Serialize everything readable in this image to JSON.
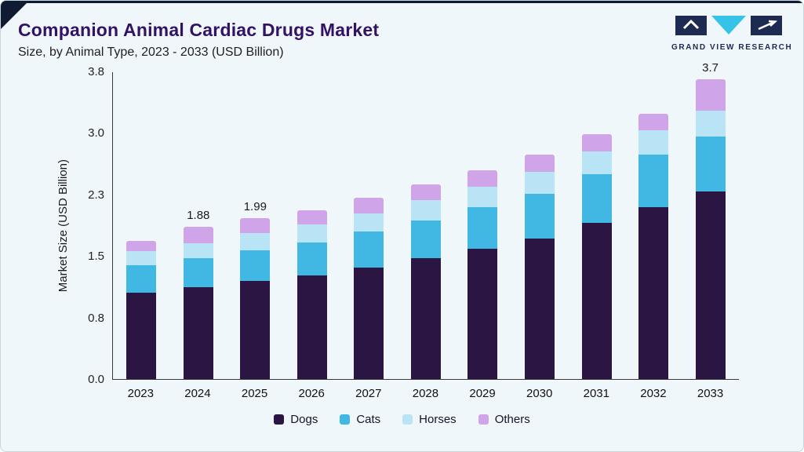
{
  "header": {
    "title": "Companion Animal Cardiac Drugs Market",
    "subtitle": "Size, by Animal Type, 2023 - 2033 (USD Billion)"
  },
  "logo": {
    "text": "GRAND VIEW RESEARCH",
    "navy": "#1d2a52",
    "teal": "#35c4e8"
  },
  "chart_data": {
    "type": "bar",
    "stacked": true,
    "title": "Companion Animal Cardiac Drugs Market Size, by Animal Type, 2023 - 2033 (USD Billion)",
    "xlabel": "",
    "ylabel": "Market Size (USD Billion)",
    "ylim": [
      0,
      3.8
    ],
    "grid": false,
    "legend_position": "bottom",
    "categories": [
      "2023",
      "2024",
      "2025",
      "2026",
      "2027",
      "2028",
      "2029",
      "2030",
      "2031",
      "2032",
      "2033"
    ],
    "series": [
      {
        "name": "Dogs",
        "color": "#2b1542",
        "values": [
          1.07,
          1.13,
          1.21,
          1.28,
          1.38,
          1.49,
          1.61,
          1.74,
          1.93,
          2.12,
          2.32
        ]
      },
      {
        "name": "Cats",
        "color": "#41b8e4",
        "values": [
          0.34,
          0.36,
          0.38,
          0.41,
          0.44,
          0.47,
          0.51,
          0.55,
          0.6,
          0.65,
          0.68
        ]
      },
      {
        "name": "Horses",
        "color": "#b8e4f5",
        "values": [
          0.17,
          0.19,
          0.21,
          0.22,
          0.23,
          0.25,
          0.26,
          0.27,
          0.28,
          0.3,
          0.32
        ]
      },
      {
        "name": "Others",
        "color": "#cfa4e8",
        "values": [
          0.13,
          0.2,
          0.19,
          0.17,
          0.19,
          0.19,
          0.2,
          0.21,
          0.21,
          0.21,
          0.38
        ]
      }
    ],
    "bar_labels": [
      "",
      "1.88",
      "1.99",
      "",
      "",
      "",
      "",
      "",
      "",
      "",
      "3.7"
    ],
    "y_ticks": [
      "3.8",
      "3.0",
      "2.3",
      "1.5",
      "0.8",
      "0.0"
    ]
  }
}
